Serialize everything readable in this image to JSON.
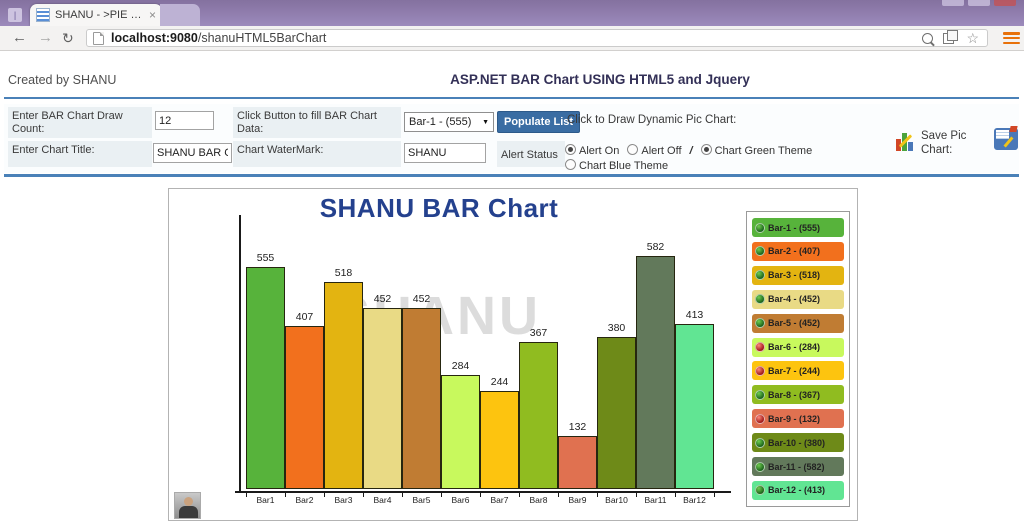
{
  "browser": {
    "tab_title": "SHANU - >PIE Chart USI",
    "tab_close": "×",
    "url_host": "localhost:9080",
    "url_path": "/shanuHTML5BarChart",
    "icons": {
      "back": "←",
      "forward": "→",
      "reload": "↻",
      "star": "☆",
      "caret": "▼"
    }
  },
  "header": {
    "created_by": "Created by SHANU",
    "title": "ASP.NET BAR Chart USING HTML5 and Jquery"
  },
  "form": {
    "draw_count_label": "Enter BAR Chart Draw Count:",
    "draw_count_value": "12",
    "fill_data_label": "Click Button to fill BAR Chart Data:",
    "bar_select_value": "Bar-1 - (555)",
    "populate_button": "Populate List",
    "draw_chart_label": "Click to Draw Dynamic Pic Chart:",
    "chart_title_label": "Enter Chart Title:",
    "chart_title_value": "SHANU BAR Chart",
    "watermark_label": "Chart WaterMark:",
    "watermark_value": "SHANU",
    "alert_status_label": "Alert Status",
    "radio_separator": "/",
    "radios": [
      {
        "label": "Alert On",
        "checked": true
      },
      {
        "label": "Alert Off",
        "checked": false
      },
      {
        "label": "Chart Green Theme",
        "checked": true
      },
      {
        "label": "Chart Blue Theme",
        "checked": false
      }
    ],
    "save_pic_label": "Save Pic Chart:"
  },
  "chart_data": {
    "type": "bar",
    "title": "SHANU BAR Chart",
    "watermark": "SHANU",
    "categories": [
      "Bar1",
      "Bar2",
      "Bar3",
      "Bar4",
      "Bar5",
      "Bar6",
      "Bar7",
      "Bar8",
      "Bar9",
      "Bar10",
      "Bar11",
      "Bar12"
    ],
    "values": [
      555,
      407,
      518,
      452,
      452,
      284,
      244,
      367,
      132,
      380,
      582,
      413
    ],
    "colors": [
      "#57B33B",
      "#F2701D",
      "#E3B411",
      "#E9DA85",
      "#C07C33",
      "#C8F95D",
      "#FDC40F",
      "#90BC20",
      "#E07150",
      "#6E8A18",
      "#62795B",
      "#61E593"
    ],
    "legend_position": "right",
    "ylim": [
      0,
      600
    ],
    "grid": false,
    "legend": [
      {
        "label": "Bar-1 - (555)",
        "color": "#57B33B",
        "dot": "green"
      },
      {
        "label": "Bar-2 - (407)",
        "color": "#F2701D",
        "dot": "green"
      },
      {
        "label": "Bar-3 - (518)",
        "color": "#E3B411",
        "dot": "green"
      },
      {
        "label": "Bar-4 - (452)",
        "color": "#E9DA85",
        "dot": "green"
      },
      {
        "label": "Bar-5 - (452)",
        "color": "#C07C33",
        "dot": "green"
      },
      {
        "label": "Bar-6 - (284)",
        "color": "#C8F95D",
        "dot": "red"
      },
      {
        "label": "Bar-7 - (244)",
        "color": "#FDC40F",
        "dot": "red"
      },
      {
        "label": "Bar-8 - (367)",
        "color": "#90BC20",
        "dot": "green"
      },
      {
        "label": "Bar-9 - (132)",
        "color": "#E07150",
        "dot": "red"
      },
      {
        "label": "Bar-10 - (380)",
        "color": "#6E8A18",
        "dot": "green"
      },
      {
        "label": "Bar-11 - (582)",
        "color": "#62795B",
        "dot": "green"
      },
      {
        "label": "Bar-12 - (413)",
        "color": "#61E593",
        "dot": "green"
      }
    ]
  }
}
